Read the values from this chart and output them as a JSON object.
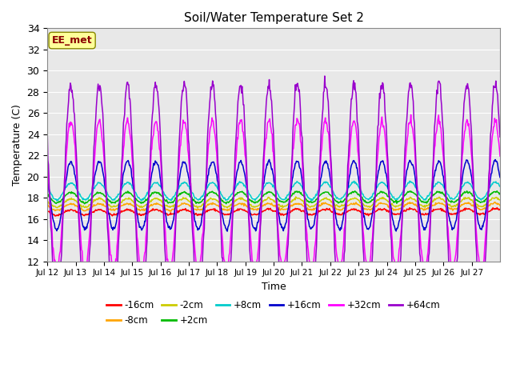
{
  "title": "Soil/Water Temperature Set 2",
  "xlabel": "Time",
  "ylabel": "Temperature (C)",
  "ylim": [
    12,
    34
  ],
  "yticks": [
    12,
    14,
    16,
    18,
    20,
    22,
    24,
    26,
    28,
    30,
    32,
    34
  ],
  "xtick_labels": [
    "Jul 12",
    "Jul 13",
    "Jul 14",
    "Jul 15",
    "Jul 16",
    "Jul 17",
    "Jul 18",
    "Jul 19",
    "Jul 20",
    "Jul 21",
    "Jul 22",
    "Jul 23",
    "Jul 24",
    "Jul 25",
    "Jul 26",
    "Jul 27"
  ],
  "annotation_text": "EE_met",
  "annotation_color": "#8B0000",
  "annotation_bg": "#FFFF99",
  "series": [
    {
      "label": "-16cm",
      "color": "#FF0000",
      "base": 16.6,
      "amp": 0.25,
      "trend": 0.1
    },
    {
      "label": "-8cm",
      "color": "#FFA500",
      "base": 17.1,
      "amp": 0.3,
      "trend": 0.09
    },
    {
      "label": "-2cm",
      "color": "#CCCC00",
      "base": 17.5,
      "amp": 0.4,
      "trend": 0.08
    },
    {
      "label": "+2cm",
      "color": "#00BB00",
      "base": 18.0,
      "amp": 0.5,
      "trend": 0.08
    },
    {
      "label": "+8cm",
      "color": "#00CCCC",
      "base": 18.6,
      "amp": 0.8,
      "trend": 0.07
    },
    {
      "label": "+16cm",
      "color": "#0000CC",
      "base": 18.2,
      "amp": 3.2,
      "trend": 0.07
    },
    {
      "label": "+32cm",
      "color": "#FF00FF",
      "base": 18.2,
      "amp": 7.0,
      "trend": 0.07
    },
    {
      "label": "+64cm",
      "color": "#9900CC",
      "base": 18.2,
      "amp": 10.5,
      "trend": 0.07
    }
  ],
  "n_days": 16,
  "samples_per_day": 48
}
